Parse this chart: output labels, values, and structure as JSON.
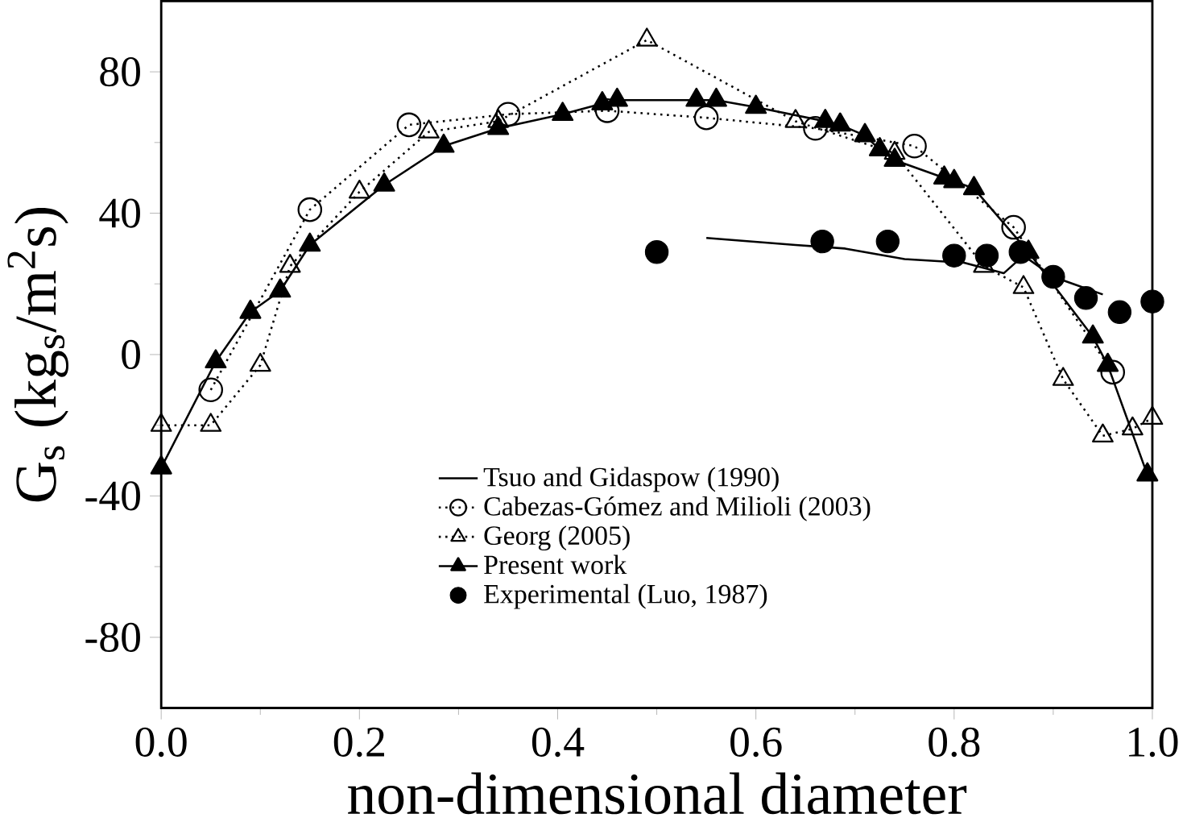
{
  "chart_data": {
    "type": "line",
    "xlabel": "non-dimensional diameter",
    "ylabel": "G$_{s}$ (kg$_{s}$/m$^{2}$s)",
    "xlim": [
      0,
      1
    ],
    "ylim": [
      -100,
      100
    ],
    "xticks": [
      {
        "value": 0,
        "label": "0.0"
      },
      {
        "value": 0.2,
        "label": "0.2"
      },
      {
        "value": 0.4,
        "label": "0.4"
      },
      {
        "value": 0.6,
        "label": "0.6"
      },
      {
        "value": 0.8,
        "label": "0.8"
      },
      {
        "value": 1,
        "label": "1.0"
      }
    ],
    "yticks": [
      -80,
      -40,
      0,
      40,
      80
    ],
    "grid": false,
    "legend": "bottom",
    "series": [
      {
        "name": "Tsuo and Gidaspow (1990)",
        "color": "#000000",
        "marker": "none",
        "line_style": "solid",
        "x": [
          0.55,
          0.64,
          0.69,
          0.75,
          0.81,
          0.85,
          0.87,
          0.9,
          0.92,
          0.95
        ],
        "values": [
          33,
          31,
          30,
          27,
          26,
          23,
          28,
          22,
          20,
          17
        ]
      },
      {
        "name": "Cabezas-Gómez and Milioli (2003)",
        "color": "#000000",
        "marker": "circle",
        "line_style": "dotted",
        "x": [
          0.05,
          0.15,
          0.25,
          0.35,
          0.45,
          0.55,
          0.66,
          0.76,
          0.86,
          0.96
        ],
        "values": [
          -10,
          41,
          65,
          68,
          69,
          67,
          64,
          59,
          36,
          -5
        ]
      },
      {
        "name": "Georg (2005)",
        "color": "#000000",
        "marker": "triangle",
        "line_style": "dotted",
        "x": [
          0.0,
          0.05,
          0.1,
          0.13,
          0.2,
          0.27,
          0.34,
          0.49,
          0.64,
          0.74,
          0.83,
          0.87,
          0.91,
          0.95,
          0.98,
          1.0
        ],
        "values": [
          -20,
          -20,
          -3,
          25,
          46,
          63,
          66,
          89,
          66,
          57,
          25,
          19,
          -7,
          -23,
          -21,
          -18
        ]
      },
      {
        "name": "Present work",
        "color": "#000000",
        "marker": "triangle*",
        "line_style": "solid",
        "x": [
          0.0,
          0.055,
          0.09,
          0.12,
          0.15,
          0.225,
          0.285,
          0.34,
          0.405,
          0.445,
          0.46,
          0.54,
          0.56,
          0.6,
          0.67,
          0.685,
          0.71,
          0.725,
          0.74,
          0.79,
          0.8,
          0.82,
          0.875,
          0.94,
          0.955,
          0.995
        ],
        "values": [
          -32,
          -2,
          12,
          18,
          31,
          48,
          59,
          64,
          68,
          71,
          72,
          72,
          72,
          70,
          66,
          65,
          62,
          58,
          55,
          50,
          49,
          47,
          29,
          5,
          -3,
          -34
        ]
      },
      {
        "name": "Experimental (Luo, 1987)",
        "type": "scatter",
        "color": "#000000",
        "marker": "circle*",
        "x": [
          0.5,
          0.667,
          0.733,
          0.8,
          0.833,
          0.867,
          0.9,
          0.933,
          0.967,
          1.0
        ],
        "values": [
          29,
          32,
          32,
          28,
          28,
          29,
          22,
          16,
          12,
          15
        ]
      }
    ]
  }
}
